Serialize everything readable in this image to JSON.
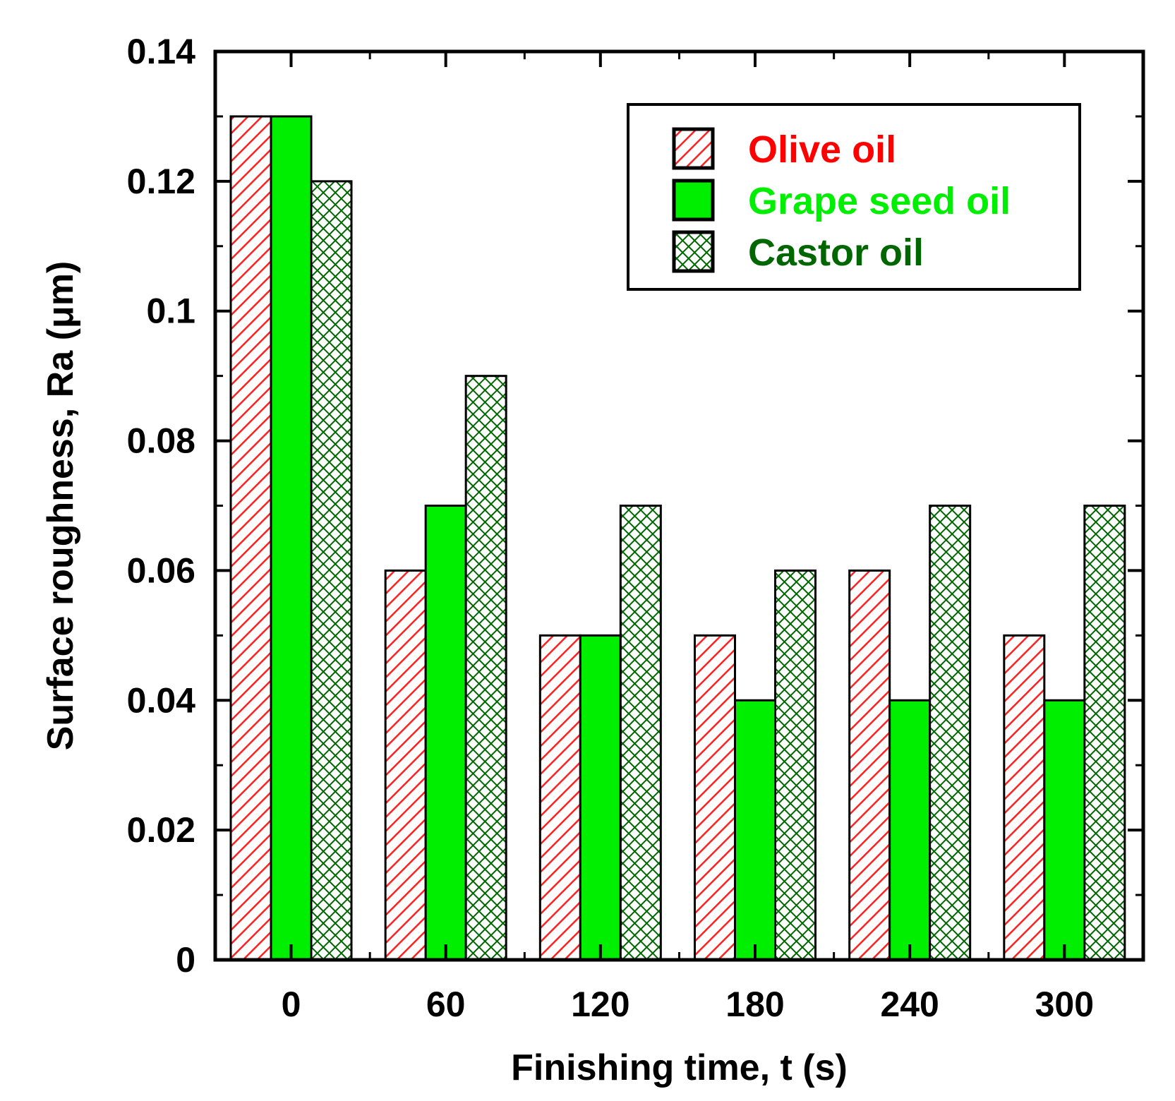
{
  "chart_data": {
    "type": "bar",
    "title": "",
    "xlabel": "Finishing time, t (s)",
    "ylabel": "Surface roughness, Ra (μm)",
    "categories": [
      "0",
      "60",
      "120",
      "180",
      "240",
      "300"
    ],
    "ylim": [
      0,
      0.14
    ],
    "yticks": [
      "0",
      "0.02",
      "0.04",
      "0.06",
      "0.08",
      "0.1",
      "0.12",
      "0.14"
    ],
    "ytick_values": [
      0,
      0.02,
      0.04,
      0.06,
      0.08,
      0.1,
      0.12,
      0.14
    ],
    "legend_position": "top-right",
    "series": [
      {
        "name": "Olive oil",
        "color": "#ff0000",
        "pattern": "diagonal-hatch",
        "values": [
          0.13,
          0.06,
          0.05,
          0.05,
          0.06,
          0.05
        ]
      },
      {
        "name": "Grape seed oil",
        "color": "#00ee00",
        "pattern": "solid",
        "values": [
          0.13,
          0.07,
          0.05,
          0.04,
          0.04,
          0.04
        ]
      },
      {
        "name": "Castor oil",
        "color": "#006600",
        "pattern": "cross-hatch",
        "values": [
          0.12,
          0.09,
          0.07,
          0.06,
          0.07,
          0.07
        ]
      }
    ]
  }
}
